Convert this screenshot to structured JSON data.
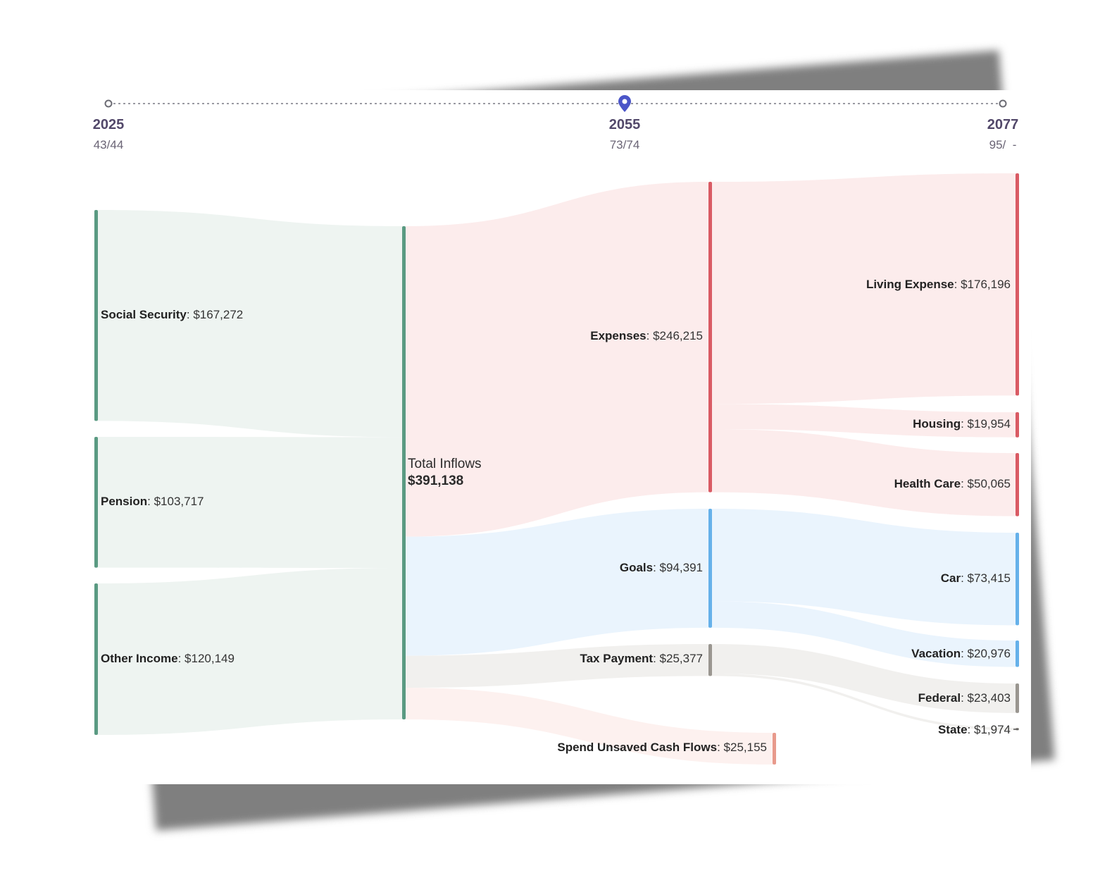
{
  "timeline": {
    "points": [
      {
        "year": "2025",
        "ages": "43/44"
      },
      {
        "year": "2055",
        "ages": "73/74"
      },
      {
        "year": "2077",
        "ages": "95/  -"
      }
    ]
  },
  "chart_data": {
    "type": "sankey",
    "title": "",
    "colors": {
      "income": "#5a9a82",
      "income_flow": "#eef4f1",
      "expense": "#d95b64",
      "expense_flow": "#fcecec",
      "goal": "#66b1ea",
      "goal_flow": "#eaf4fd",
      "tax": "#9a9690",
      "tax_flow": "#f1f0ee",
      "spend": "#e89a8c",
      "spend_flow": "#fdf1ef"
    },
    "nodes": [
      {
        "id": "social_security",
        "name": "Social Security",
        "value": "$167,272",
        "amount": 167272
      },
      {
        "id": "pension",
        "name": "Pension",
        "value": "$103,717",
        "amount": 103717
      },
      {
        "id": "other_income",
        "name": "Other Income",
        "value": "$120,149",
        "amount": 120149
      },
      {
        "id": "total_inflows",
        "name": "Total Inflows",
        "value": "$391,138",
        "amount": 391138
      },
      {
        "id": "expenses",
        "name": "Expenses",
        "value": "$246,215",
        "amount": 246215
      },
      {
        "id": "goals",
        "name": "Goals",
        "value": "$94,391",
        "amount": 94391
      },
      {
        "id": "tax_payment",
        "name": "Tax Payment",
        "value": "$25,377",
        "amount": 25377
      },
      {
        "id": "spend_unsaved",
        "name": "Spend Unsaved Cash Flows",
        "value": "$25,155",
        "amount": 25155
      },
      {
        "id": "living_expense",
        "name": "Living Expense",
        "value": "$176,196",
        "amount": 176196
      },
      {
        "id": "housing",
        "name": "Housing",
        "value": "$19,954",
        "amount": 19954
      },
      {
        "id": "health_care",
        "name": "Health Care",
        "value": "$50,065",
        "amount": 50065
      },
      {
        "id": "car",
        "name": "Car",
        "value": "$73,415",
        "amount": 73415
      },
      {
        "id": "vacation",
        "name": "Vacation",
        "value": "$20,976",
        "amount": 20976
      },
      {
        "id": "federal",
        "name": "Federal",
        "value": "$23,403",
        "amount": 23403
      },
      {
        "id": "state",
        "name": "State",
        "value": "$1,974",
        "amount": 1974
      }
    ],
    "links": [
      {
        "source": "social_security",
        "target": "total_inflows",
        "value": 167272
      },
      {
        "source": "pension",
        "target": "total_inflows",
        "value": 103717
      },
      {
        "source": "other_income",
        "target": "total_inflows",
        "value": 120149
      },
      {
        "source": "total_inflows",
        "target": "expenses",
        "value": 246215
      },
      {
        "source": "total_inflows",
        "target": "goals",
        "value": 94391
      },
      {
        "source": "total_inflows",
        "target": "tax_payment",
        "value": 25377
      },
      {
        "source": "total_inflows",
        "target": "spend_unsaved",
        "value": 25155
      },
      {
        "source": "expenses",
        "target": "living_expense",
        "value": 176196
      },
      {
        "source": "expenses",
        "target": "housing",
        "value": 19954
      },
      {
        "source": "expenses",
        "target": "health_care",
        "value": 50065
      },
      {
        "source": "goals",
        "target": "car",
        "value": 73415
      },
      {
        "source": "goals",
        "target": "vacation",
        "value": 20976
      },
      {
        "source": "tax_payment",
        "target": "federal",
        "value": 23403
      },
      {
        "source": "tax_payment",
        "target": "state",
        "value": 1974
      }
    ]
  }
}
